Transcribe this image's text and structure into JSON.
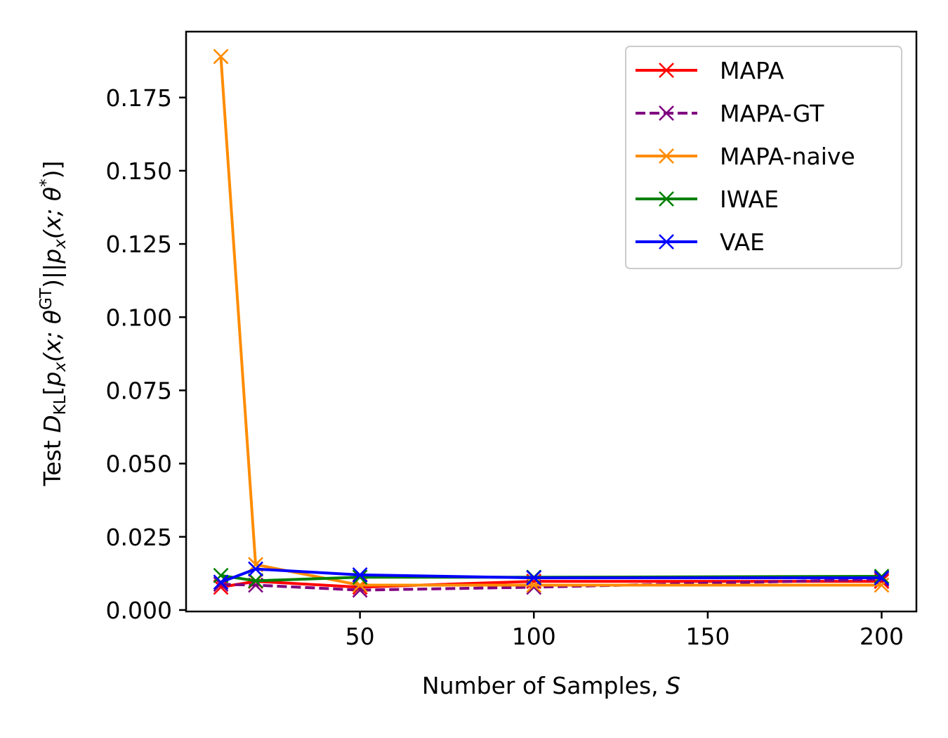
{
  "chart_data": {
    "type": "line",
    "title": "",
    "xlabel": "Number of Samples, S",
    "ylabel": "Test D_KL[p_x(x; θ^GT) || p_x(x; θ*)]",
    "ylabel_parts": {
      "test": "Test ",
      "D": "D",
      "D_sub": "KL",
      "open": "[",
      "p1": "p",
      "p1_sub": "x",
      "args1": "(x; θ",
      "args1_sup": "GT",
      "mid": ")||",
      "p2": "p",
      "p2_sub": "x",
      "args2": "(x; θ",
      "args2_sup": "*",
      "close": ")]"
    },
    "xlim": [
      0,
      210
    ],
    "ylim": [
      -0.0005,
      0.1975
    ],
    "x_ticks": [
      50,
      100,
      150,
      200
    ],
    "x_tick_labels": [
      "50",
      "100",
      "150",
      "200"
    ],
    "y_ticks": [
      0.0,
      0.025,
      0.05,
      0.075,
      0.1,
      0.125,
      0.15,
      0.175
    ],
    "y_tick_labels": [
      "0.000",
      "0.025",
      "0.050",
      "0.075",
      "0.100",
      "0.125",
      "0.150",
      "0.175"
    ],
    "grid": false,
    "legend_position": "top-right",
    "x": [
      10,
      20,
      50,
      100,
      200
    ],
    "series": [
      {
        "name": "MAPA",
        "color": "#ff0000",
        "dashed": false,
        "values": [
          0.0078,
          0.0098,
          0.0078,
          0.0098,
          0.0098
        ]
      },
      {
        "name": "MAPA-GT",
        "color": "#800080",
        "dashed": true,
        "values": [
          0.0088,
          0.0085,
          0.0068,
          0.0078,
          0.0105
        ]
      },
      {
        "name": "MAPA-naive",
        "color": "#ff8c00",
        "dashed": false,
        "values": [
          0.189,
          0.0155,
          0.0085,
          0.0085,
          0.0085
        ]
      },
      {
        "name": "IWAE",
        "color": "#008000",
        "dashed": false,
        "values": [
          0.0118,
          0.01,
          0.0112,
          0.0112,
          0.0115
        ]
      },
      {
        "name": "VAE",
        "color": "#0000ff",
        "dashed": false,
        "values": [
          0.0095,
          0.014,
          0.012,
          0.011,
          0.011
        ]
      }
    ]
  }
}
